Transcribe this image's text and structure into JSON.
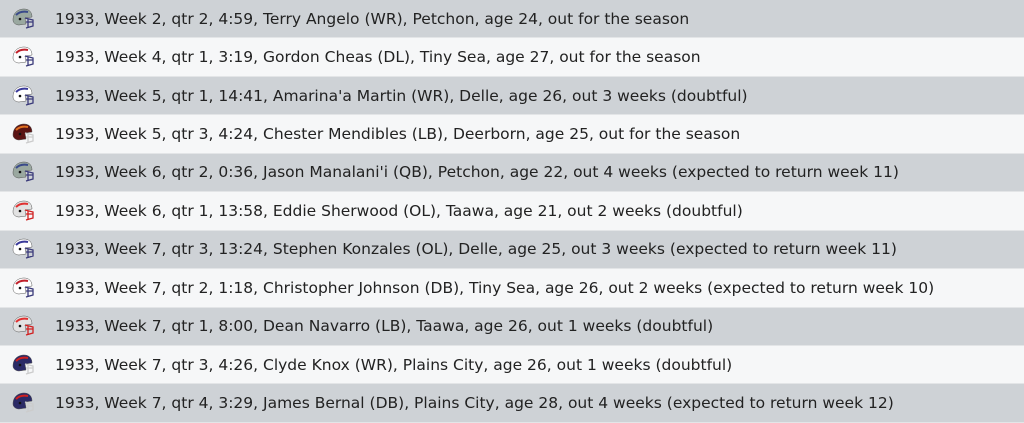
{
  "teams": {
    "Petchon": {
      "shell": "#9aa8a0",
      "stripe": "#3a4a8a",
      "mask": "#3a3a7a"
    },
    "Tiny Sea": {
      "shell": "#ffffff",
      "stripe": "#c0202a",
      "mask": "#3a3a7a"
    },
    "Delle": {
      "shell": "#ffffff",
      "stripe": "#3a3a9a",
      "mask": "#3a3a7a"
    },
    "Deerborn": {
      "shell": "#5a1414",
      "stripe": "#e07020",
      "mask": "#cccccc"
    },
    "Taawa": {
      "shell": "#e2e2e2",
      "stripe": "#e03030",
      "mask": "#d02020"
    },
    "Plains City": {
      "shell": "#2a2a66",
      "stripe": "#d02020",
      "mask": "#cccccc"
    }
  },
  "injuries": [
    {
      "team": "Petchon",
      "text": "1933, Week 2, qtr 2, 4:59, Terry Angelo (WR), Petchon, age 24, out for the season"
    },
    {
      "team": "Tiny Sea",
      "text": "1933, Week 4, qtr 1, 3:19, Gordon Cheas (DL), Tiny Sea, age 27, out for the season"
    },
    {
      "team": "Delle",
      "text": "1933, Week 5, qtr 1, 14:41, Amarina'a Martin (WR), Delle, age 26, out 3 weeks (doubtful)"
    },
    {
      "team": "Deerborn",
      "text": "1933, Week 5, qtr 3, 4:24, Chester Mendibles (LB), Deerborn, age 25, out for the season"
    },
    {
      "team": "Petchon",
      "text": "1933, Week 6, qtr 2, 0:36, Jason Manalani'i (QB), Petchon, age 22, out 4 weeks (expected to return week 11)"
    },
    {
      "team": "Taawa",
      "text": "1933, Week 6, qtr 1, 13:58, Eddie Sherwood (OL), Taawa, age 21, out 2 weeks (doubtful)"
    },
    {
      "team": "Delle",
      "text": "1933, Week 7, qtr 3, 13:24, Stephen Konzales (OL), Delle, age 25, out 3 weeks (expected to return week 11)"
    },
    {
      "team": "Tiny Sea",
      "text": "1933, Week 7, qtr 2, 1:18, Christopher Johnson (DB), Tiny Sea, age 26, out 2 weeks (expected to return week 10)"
    },
    {
      "team": "Taawa",
      "text": "1933, Week 7, qtr 1, 8:00, Dean Navarro (LB), Taawa, age 26, out 1 weeks (doubtful)"
    },
    {
      "team": "Plains City",
      "text": "1933, Week 7, qtr 3, 4:26, Clyde Knox (WR), Plains City, age 26, out 1 weeks (doubtful)"
    },
    {
      "team": "Plains City",
      "text": "1933, Week 7, qtr 4, 3:29, James Bernal (DB), Plains City, age 28, out 4 weeks (expected to return week 12)"
    }
  ]
}
